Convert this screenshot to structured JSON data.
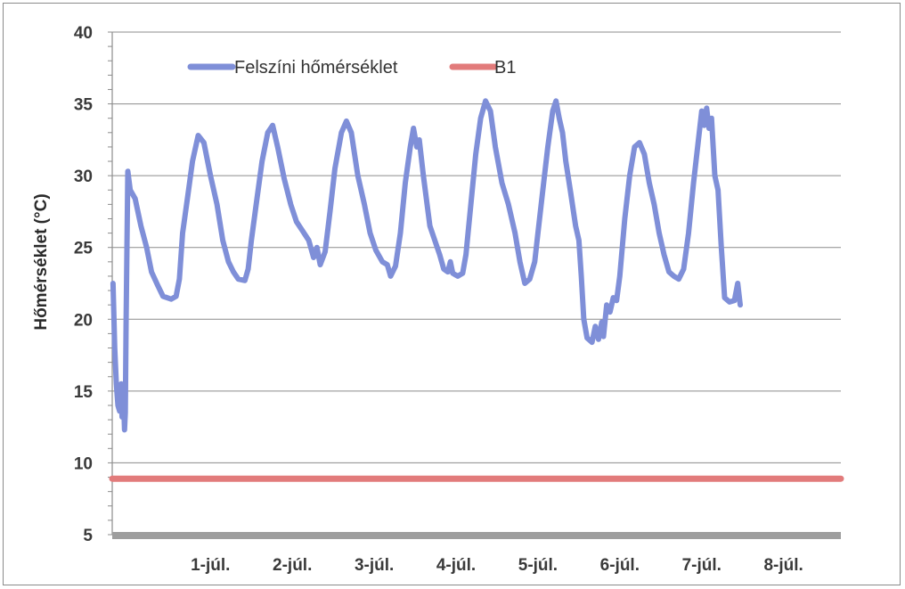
{
  "chart_data": {
    "type": "line",
    "title": "",
    "xlabel": "",
    "ylabel": "Hőmérséklet (°C)",
    "ylim": [
      5,
      40
    ],
    "yticks": [
      5,
      10,
      15,
      20,
      25,
      30,
      35,
      40
    ],
    "xlim": [
      -0.2,
      8.7
    ],
    "xticks": [
      {
        "label": "1-júl.",
        "x": 1
      },
      {
        "label": "2-júl.",
        "x": 2
      },
      {
        "label": "3-júl.",
        "x": 3
      },
      {
        "label": "4-júl.",
        "x": 4
      },
      {
        "label": "5-júl.",
        "x": 5
      },
      {
        "label": "6-júl.",
        "x": 6
      },
      {
        "label": "7-júl.",
        "x": 7
      },
      {
        "label": "8-júl.",
        "x": 8
      }
    ],
    "grid": "horizontal",
    "legend_position": "top-left",
    "series": [
      {
        "name": "Felszíni hőmérséklet",
        "color": "#7f8fd8",
        "points": [
          [
            -0.19,
            22.5
          ],
          [
            -0.17,
            18.0
          ],
          [
            -0.15,
            15.5
          ],
          [
            -0.13,
            14.0
          ],
          [
            -0.11,
            13.6
          ],
          [
            -0.09,
            15.5
          ],
          [
            -0.08,
            13.2
          ],
          [
            -0.06,
            14.0
          ],
          [
            -0.05,
            12.3
          ],
          [
            -0.04,
            13.5
          ],
          [
            -0.03,
            20.0
          ],
          [
            -0.02,
            25.0
          ],
          [
            -0.01,
            30.3
          ],
          [
            0.02,
            29.0
          ],
          [
            0.08,
            28.4
          ],
          [
            0.15,
            26.5
          ],
          [
            0.22,
            25.0
          ],
          [
            0.28,
            23.3
          ],
          [
            0.36,
            22.3
          ],
          [
            0.42,
            21.6
          ],
          [
            0.52,
            21.4
          ],
          [
            0.58,
            21.6
          ],
          [
            0.62,
            22.8
          ],
          [
            0.66,
            26.0
          ],
          [
            0.72,
            28.5
          ],
          [
            0.78,
            31.0
          ],
          [
            0.85,
            32.8
          ],
          [
            0.92,
            32.3
          ],
          [
            1.0,
            30.0
          ],
          [
            1.08,
            28.0
          ],
          [
            1.15,
            25.5
          ],
          [
            1.22,
            24.0
          ],
          [
            1.28,
            23.3
          ],
          [
            1.34,
            22.8
          ],
          [
            1.42,
            22.7
          ],
          [
            1.46,
            23.5
          ],
          [
            1.5,
            25.5
          ],
          [
            1.57,
            28.5
          ],
          [
            1.63,
            31.0
          ],
          [
            1.7,
            33.0
          ],
          [
            1.76,
            33.5
          ],
          [
            1.82,
            32.0
          ],
          [
            1.9,
            29.8
          ],
          [
            1.98,
            28.0
          ],
          [
            2.05,
            26.8
          ],
          [
            2.12,
            26.2
          ],
          [
            2.2,
            25.5
          ],
          [
            2.26,
            24.3
          ],
          [
            2.3,
            25.0
          ],
          [
            2.34,
            23.8
          ],
          [
            2.4,
            24.7
          ],
          [
            2.46,
            27.5
          ],
          [
            2.52,
            30.5
          ],
          [
            2.6,
            33.0
          ],
          [
            2.66,
            33.8
          ],
          [
            2.72,
            33.0
          ],
          [
            2.8,
            30.0
          ],
          [
            2.88,
            28.0
          ],
          [
            2.95,
            26.0
          ],
          [
            3.02,
            24.8
          ],
          [
            3.1,
            24.0
          ],
          [
            3.16,
            23.8
          ],
          [
            3.2,
            23.0
          ],
          [
            3.26,
            23.7
          ],
          [
            3.32,
            26.0
          ],
          [
            3.38,
            29.5
          ],
          [
            3.44,
            32.0
          ],
          [
            3.48,
            33.3
          ],
          [
            3.52,
            32.0
          ],
          [
            3.55,
            32.5
          ],
          [
            3.6,
            30.0
          ],
          [
            3.68,
            26.5
          ],
          [
            3.74,
            25.5
          ],
          [
            3.8,
            24.5
          ],
          [
            3.85,
            23.5
          ],
          [
            3.9,
            23.3
          ],
          [
            3.93,
            24.0
          ],
          [
            3.96,
            23.2
          ],
          [
            4.02,
            23.0
          ],
          [
            4.08,
            23.2
          ],
          [
            4.12,
            24.5
          ],
          [
            4.18,
            28.0
          ],
          [
            4.24,
            31.5
          ],
          [
            4.3,
            34.0
          ],
          [
            4.36,
            35.2
          ],
          [
            4.42,
            34.5
          ],
          [
            4.48,
            32.0
          ],
          [
            4.56,
            29.5
          ],
          [
            4.64,
            28.0
          ],
          [
            4.72,
            26.0
          ],
          [
            4.78,
            24.0
          ],
          [
            4.84,
            22.5
          ],
          [
            4.9,
            22.8
          ],
          [
            4.96,
            24.0
          ],
          [
            5.0,
            26.0
          ],
          [
            5.06,
            29.0
          ],
          [
            5.12,
            32.0
          ],
          [
            5.18,
            34.5
          ],
          [
            5.22,
            35.2
          ],
          [
            5.26,
            34.0
          ],
          [
            5.3,
            33.0
          ],
          [
            5.34,
            31.0
          ],
          [
            5.4,
            28.8
          ],
          [
            5.46,
            26.5
          ],
          [
            5.5,
            25.5
          ],
          [
            5.53,
            23.0
          ],
          [
            5.56,
            20.0
          ],
          [
            5.6,
            18.7
          ],
          [
            5.66,
            18.4
          ],
          [
            5.7,
            19.5
          ],
          [
            5.74,
            18.6
          ],
          [
            5.78,
            19.8
          ],
          [
            5.8,
            18.8
          ],
          [
            5.84,
            21.0
          ],
          [
            5.88,
            20.5
          ],
          [
            5.92,
            21.5
          ],
          [
            5.96,
            21.3
          ],
          [
            6.0,
            23.0
          ],
          [
            6.06,
            27.0
          ],
          [
            6.12,
            30.0
          ],
          [
            6.18,
            32.0
          ],
          [
            6.24,
            32.3
          ],
          [
            6.3,
            31.5
          ],
          [
            6.36,
            29.5
          ],
          [
            6.42,
            28.0
          ],
          [
            6.48,
            26.0
          ],
          [
            6.54,
            24.5
          ],
          [
            6.6,
            23.3
          ],
          [
            6.66,
            23.0
          ],
          [
            6.72,
            22.8
          ],
          [
            6.78,
            23.5
          ],
          [
            6.84,
            26.0
          ],
          [
            6.9,
            29.5
          ],
          [
            6.96,
            32.5
          ],
          [
            7.0,
            34.5
          ],
          [
            7.03,
            33.5
          ],
          [
            7.06,
            34.7
          ],
          [
            7.09,
            33.3
          ],
          [
            7.12,
            34.0
          ],
          [
            7.16,
            30.0
          ],
          [
            7.2,
            29.0
          ],
          [
            7.24,
            25.0
          ],
          [
            7.28,
            21.5
          ],
          [
            7.34,
            21.2
          ],
          [
            7.4,
            21.3
          ],
          [
            7.44,
            22.5
          ],
          [
            7.47,
            21.0
          ]
        ]
      },
      {
        "name": "B1",
        "color": "#e27b7b",
        "points": [
          [
            -0.2,
            8.9
          ],
          [
            8.7,
            8.9
          ]
        ]
      }
    ]
  }
}
